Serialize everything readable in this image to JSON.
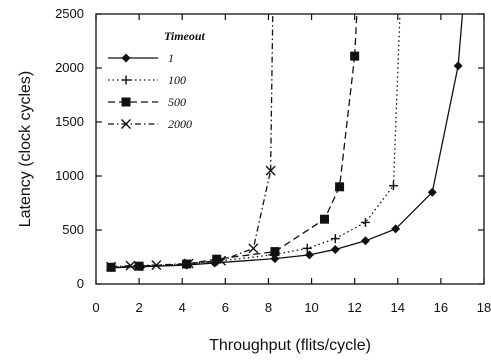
{
  "chart_data": {
    "type": "line",
    "xlabel": "Throughput (flits/cycle)",
    "ylabel": "Latency (clock cycles)",
    "xlim": [
      0,
      18
    ],
    "ylim": [
      0,
      2500
    ],
    "xticks": [
      0,
      2,
      4,
      6,
      8,
      10,
      12,
      14,
      16,
      18
    ],
    "yticks": [
      0,
      500,
      1000,
      1500,
      2000,
      2500
    ],
    "grid": false,
    "legend": {
      "title": "Timeout",
      "position": "top-left"
    },
    "series": [
      {
        "name": "1",
        "marker": "diamond",
        "dash": "solid",
        "points": [
          [
            0.7,
            150
          ],
          [
            2.1,
            160
          ],
          [
            4.2,
            175
          ],
          [
            5.5,
            195
          ],
          [
            8.3,
            235
          ],
          [
            9.9,
            270
          ],
          [
            11.1,
            320
          ],
          [
            12.5,
            400
          ],
          [
            13.9,
            510
          ],
          [
            15.6,
            850
          ],
          [
            16.8,
            2020
          ]
        ],
        "asymptote": [
          [
            16.8,
            2020
          ],
          [
            17.0,
            2500
          ]
        ]
      },
      {
        "name": "100",
        "marker": "plus",
        "dash": "dot",
        "points": [
          [
            0.8,
            155
          ],
          [
            2.0,
            165
          ],
          [
            4.2,
            180
          ],
          [
            5.6,
            210
          ],
          [
            8.2,
            270
          ],
          [
            9.8,
            330
          ],
          [
            11.1,
            420
          ],
          [
            12.5,
            570
          ],
          [
            13.8,
            910
          ]
        ],
        "asymptote": [
          [
            13.8,
            910
          ],
          [
            14.1,
            2500
          ]
        ]
      },
      {
        "name": "500",
        "marker": "square",
        "dash": "dash",
        "points": [
          [
            0.7,
            155
          ],
          [
            2.0,
            165
          ],
          [
            4.2,
            185
          ],
          [
            5.6,
            230
          ],
          [
            8.3,
            300
          ],
          [
            10.6,
            600
          ],
          [
            11.3,
            900
          ],
          [
            12.0,
            2110
          ]
        ],
        "asymptote": [
          [
            12.0,
            2110
          ],
          [
            12.1,
            2500
          ]
        ]
      },
      {
        "name": "2000",
        "marker": "x",
        "dash": "dashdot",
        "points": [
          [
            0.7,
            160
          ],
          [
            1.6,
            170
          ],
          [
            2.8,
            175
          ],
          [
            4.3,
            190
          ],
          [
            5.8,
            215
          ],
          [
            7.3,
            330
          ],
          [
            8.1,
            1050
          ]
        ],
        "asymptote": [
          [
            8.1,
            1050
          ],
          [
            8.2,
            2500
          ]
        ]
      }
    ]
  }
}
